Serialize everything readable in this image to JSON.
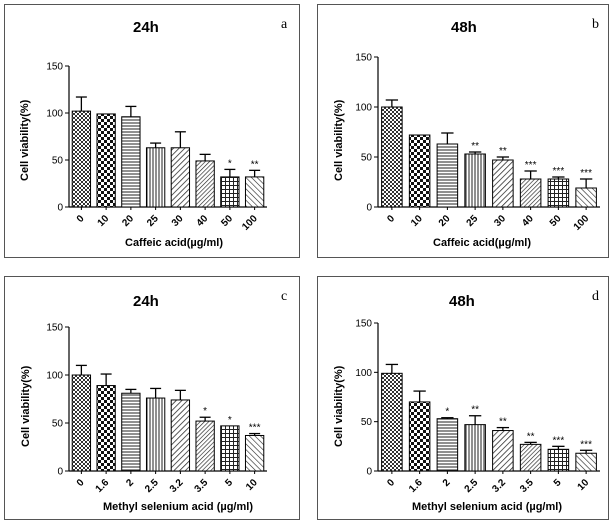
{
  "chart_data": [
    {
      "type": "bar",
      "panel_letter": "a",
      "title": "24h",
      "xlabel": "Caffeic acid(µg/ml)",
      "ylabel": "Cell viability(%)",
      "ylim": [
        0,
        150
      ],
      "yticks": [
        "0",
        "50",
        "100",
        "150"
      ],
      "categories": [
        "0",
        "10",
        "20",
        "25",
        "30",
        "40",
        "50",
        "100"
      ],
      "values": [
        102,
        99,
        96,
        63,
        63,
        49,
        32,
        32
      ],
      "errors": [
        15,
        0,
        11,
        5,
        17,
        7,
        8,
        7
      ],
      "significance": [
        "",
        "",
        "",
        "",
        "",
        "",
        "*",
        "**"
      ]
    },
    {
      "type": "bar",
      "panel_letter": "b",
      "title": "48h",
      "xlabel": "Caffeic acid(µg/ml)",
      "ylabel": "Cell viability(%)",
      "ylim": [
        0,
        150
      ],
      "yticks": [
        "0",
        "50",
        "100",
        "150"
      ],
      "categories": [
        "0",
        "10",
        "20",
        "25",
        "30",
        "40",
        "50",
        "100"
      ],
      "values": [
        100,
        72,
        63,
        53,
        47,
        28,
        28,
        19
      ],
      "errors": [
        7,
        0,
        11,
        2,
        3,
        8,
        2,
        9
      ],
      "significance": [
        "",
        "",
        "",
        "**",
        "**",
        "***",
        "***",
        "***"
      ]
    },
    {
      "type": "bar",
      "panel_letter": "c",
      "title": "24h",
      "xlabel": "Methyl selenium acid (µg/ml)",
      "ylabel": "Cell viability(%)",
      "ylim": [
        0,
        150
      ],
      "yticks": [
        "0",
        "50",
        "100",
        "150"
      ],
      "categories": [
        "0",
        "1.6",
        "2",
        "2.5",
        "3.2",
        "3.5",
        "5",
        "10"
      ],
      "values": [
        100,
        89,
        81,
        76,
        74,
        52,
        47,
        37
      ],
      "errors": [
        10,
        12,
        4,
        10,
        10,
        4,
        0,
        2
      ],
      "significance": [
        "",
        "",
        "",
        "",
        "",
        "*",
        "*",
        "***"
      ]
    },
    {
      "type": "bar",
      "panel_letter": "d",
      "title": "48h",
      "xlabel": "Methyl selenium acid (µg/ml)",
      "ylabel": "Cell viability(%)",
      "ylim": [
        0,
        150
      ],
      "yticks": [
        "0",
        "50",
        "100",
        "150"
      ],
      "categories": [
        "0",
        "1.6",
        "2",
        "2.5",
        "3.2",
        "3.5",
        "5",
        "10"
      ],
      "values": [
        99,
        70,
        53,
        47,
        41,
        27,
        22,
        18
      ],
      "errors": [
        9,
        11,
        1,
        9,
        3,
        2,
        3,
        3
      ],
      "significance": [
        "",
        "",
        "*",
        "**",
        "**",
        "**",
        "***",
        "***"
      ]
    }
  ]
}
